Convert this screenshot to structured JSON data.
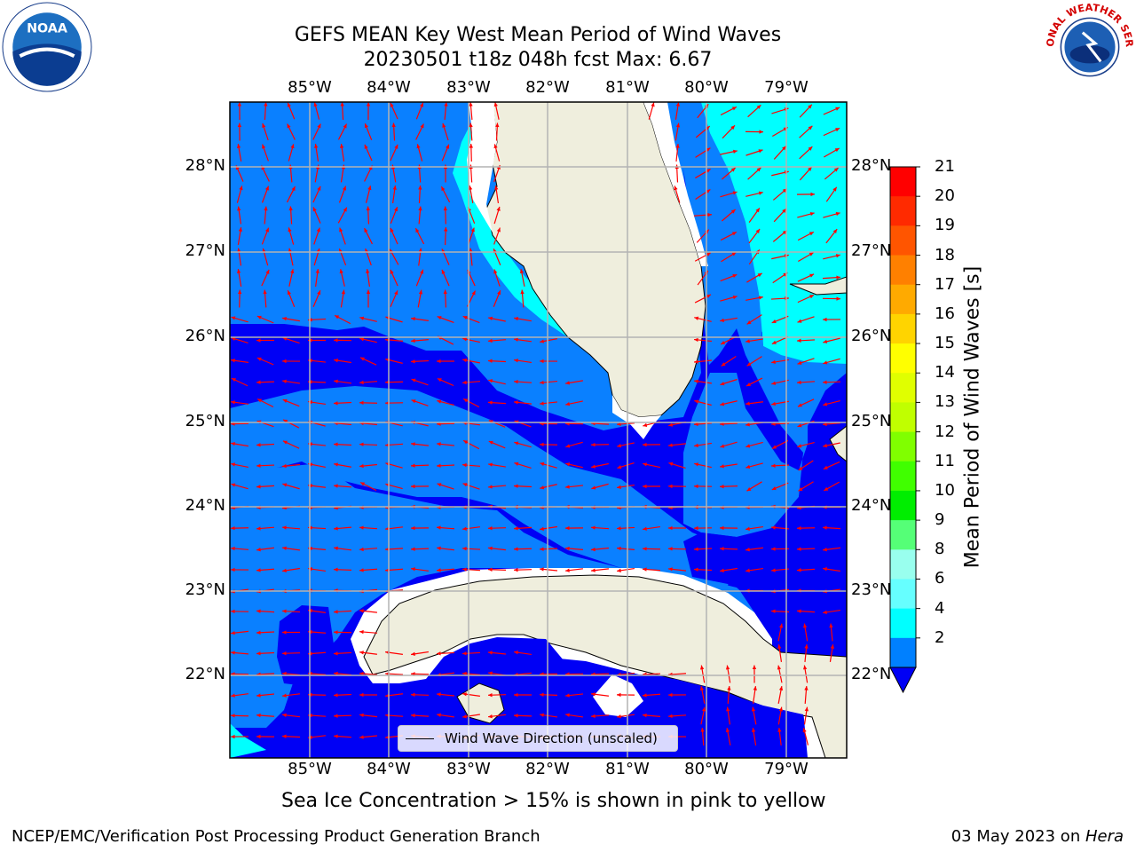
{
  "title": {
    "line1": "GEFS MEAN Key West Mean Period of Wind Waves",
    "line2": "20230501 t18z 048h fcst   Max: 6.67"
  },
  "logos": {
    "left": "noaa-logo",
    "left_text": "NOAA",
    "right": "nws-logo",
    "right_text": "NATIONAL WEATHER SERVICE"
  },
  "map": {
    "lon_labels": [
      "85°W",
      "84°W",
      "83°W",
      "82°W",
      "81°W",
      "80°W",
      "79°W"
    ],
    "lat_labels": [
      "28°N",
      "27°N",
      "26°N",
      "25°N",
      "24°N",
      "23°N",
      "22°N"
    ],
    "colors": {
      "dark_blue": "#0000f5",
      "mid_blue": "#0a80ff",
      "cyan": "#00ffff",
      "land": "#efeedd",
      "arrow": "#ff0000",
      "grid": "#b3b3b3"
    }
  },
  "legend": {
    "label": "Wind Wave Direction (unscaled)"
  },
  "colorbar": {
    "title": "Mean Period of Wind Waves [s]",
    "labels": [
      "21",
      "20",
      "19",
      "18",
      "17",
      "16",
      "15",
      "14",
      "13",
      "12",
      "11",
      "10",
      "9",
      "8",
      "6",
      "4",
      "2"
    ],
    "colors": [
      "#ff0000",
      "#ff2a00",
      "#ff5500",
      "#ff8000",
      "#ffaa00",
      "#ffd400",
      "#ffff00",
      "#e0ff00",
      "#c0ff00",
      "#80ff00",
      "#40ff00",
      "#00ee00",
      "#55ff77",
      "#99ffee",
      "#66ffff",
      "#00ffff",
      "#0080ff"
    ],
    "under_color": "#0000f5"
  },
  "subtitle": "Sea Ice Concentration > 15% is shown in pink to yellow",
  "footer": {
    "left": "NCEP/EMC/Verification Post Processing Product Generation Branch",
    "right_date": "03 May 2023 on ",
    "right_host": "Hera"
  }
}
